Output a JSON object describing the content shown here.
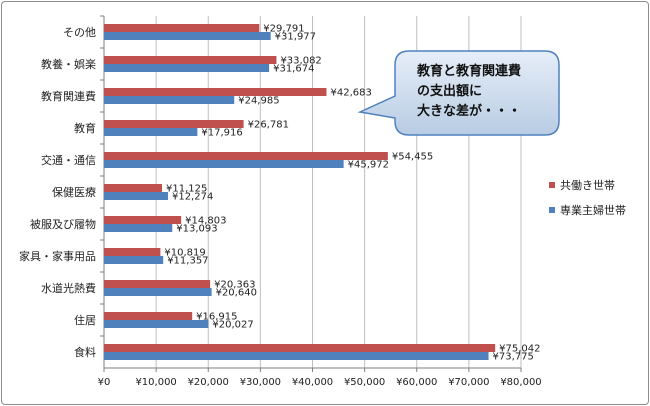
{
  "chart_data": {
    "type": "bar",
    "orientation": "horizontal",
    "categories": [
      "その他",
      "教養・娯楽",
      "教育関連費",
      "教育",
      "交通・通信",
      "保健医療",
      "被服及び履物",
      "家具・家事用品",
      "水道光熱費",
      "住居",
      "食料"
    ],
    "series": [
      {
        "name": "共働き世帯",
        "color": "#c0504d",
        "values": [
          29791,
          33082,
          42683,
          26781,
          54455,
          11125,
          14803,
          10819,
          20363,
          16915,
          75042
        ],
        "labels": [
          "¥29,791",
          "¥33,082",
          "¥42,683",
          "¥26,781",
          "¥54,455",
          "¥11,125",
          "¥14,803",
          "¥10,819",
          "¥20,363",
          "¥16,915",
          "¥75,042"
        ]
      },
      {
        "name": "専業主婦世帯",
        "color": "#4f81bd",
        "values": [
          31977,
          31674,
          24985,
          17916,
          45972,
          12274,
          13093,
          11357,
          20640,
          20027,
          73775
        ],
        "labels": [
          "¥31,977",
          "¥31,674",
          "¥24,985",
          "¥17,916",
          "¥45,972",
          "¥12,274",
          "¥13,093",
          "¥11,357",
          "¥20,640",
          "¥20,027",
          "¥73,775"
        ]
      }
    ],
    "xlim": [
      0,
      80000
    ],
    "x_ticks": [
      0,
      10000,
      20000,
      30000,
      40000,
      50000,
      60000,
      70000,
      80000
    ],
    "x_tick_labels": [
      "¥0",
      "¥10,000",
      "¥20,000",
      "¥30,000",
      "¥40,000",
      "¥50,000",
      "¥60,000",
      "¥70,000",
      "¥80,000"
    ],
    "grid": "vertical",
    "legend_position": "right",
    "annotation": [
      "教育と教育関連費",
      "の支出額に",
      "大きな差が・・・"
    ]
  }
}
